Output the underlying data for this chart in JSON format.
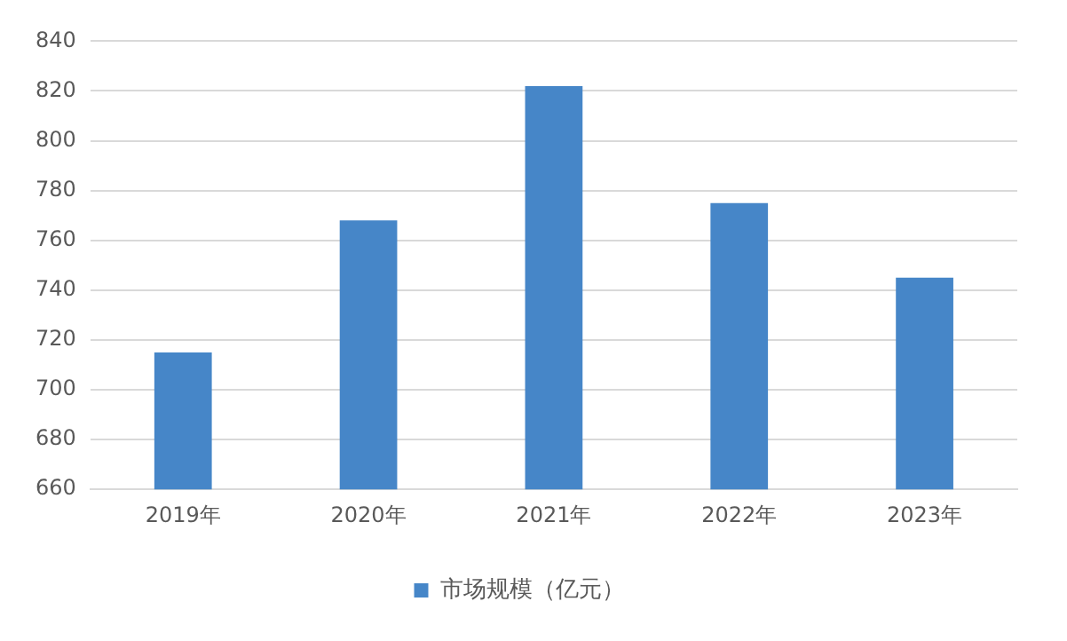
{
  "chart_data": {
    "type": "bar",
    "categories": [
      "2019年",
      "2020年",
      "2021年",
      "2022年",
      "2023年"
    ],
    "series": [
      {
        "name": "市场规模（亿元）",
        "color": "#4686c8",
        "values": [
          715,
          768,
          822,
          775,
          745
        ]
      }
    ],
    "ylim": [
      660,
      840
    ],
    "yticks": [
      660,
      680,
      700,
      720,
      740,
      760,
      780,
      800,
      820,
      840
    ],
    "grid": "y",
    "legend": "bottom"
  }
}
